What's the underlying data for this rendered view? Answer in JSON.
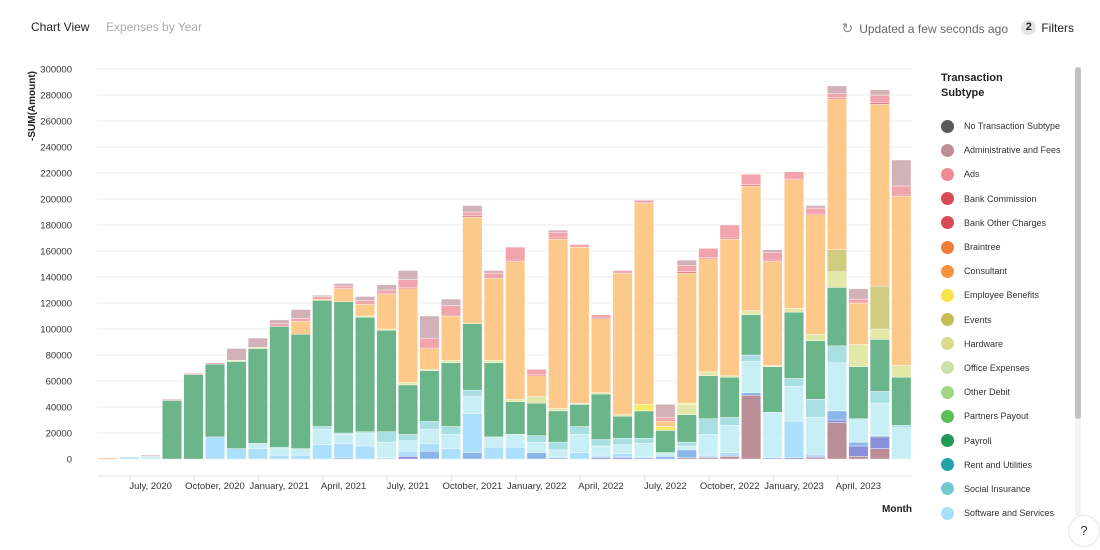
{
  "header": {
    "tab_chart_view": "Chart View",
    "tab_expenses_by_year": "Expenses by Year",
    "updated": "Updated a few seconds ago",
    "filters_count": "2",
    "filters_label": "Filters",
    "help": "?"
  },
  "legend": {
    "title_line1": "Transaction",
    "title_line2": "Subtype",
    "items": [
      {
        "label": "No Transaction Subtype",
        "color": "#5a5a5a"
      },
      {
        "label": "Administrative and Fees",
        "color": "#bf8f97"
      },
      {
        "label": "Ads",
        "color": "#ef8a96"
      },
      {
        "label": "Bank Commission",
        "color": "#d94a57"
      },
      {
        "label": "Bank Other Charges",
        "color": "#d84a58"
      },
      {
        "label": "Braintree",
        "color": "#f27d3a"
      },
      {
        "label": "Consultant",
        "color": "#f9923e"
      },
      {
        "label": "Employee Benefits",
        "color": "#f8e44c"
      },
      {
        "label": "Events",
        "color": "#c6bf56"
      },
      {
        "label": "Hardware",
        "color": "#dcd88c"
      },
      {
        "label": "Office Expenses",
        "color": "#c9e2a9"
      },
      {
        "label": "Other Debit",
        "color": "#a3d785"
      },
      {
        "label": "Partners Payout",
        "color": "#5cbf56"
      },
      {
        "label": "Payroll",
        "color": "#1f9a58"
      },
      {
        "label": "Rent and Utilities",
        "color": "#21a3a9"
      },
      {
        "label": "Social Insurance",
        "color": "#74c9cf"
      },
      {
        "label": "Software and Services",
        "color": "#a7e0f8"
      }
    ]
  },
  "chart_data": {
    "type": "bar",
    "stacked": true,
    "ylabel": "-SUM(Amount)",
    "xlabel": "Month",
    "ylim": [
      0,
      300000
    ],
    "yticks": [
      0,
      20000,
      40000,
      60000,
      80000,
      100000,
      120000,
      140000,
      160000,
      180000,
      200000,
      220000,
      240000,
      260000,
      280000,
      300000
    ],
    "grid": true,
    "legend_position": "right",
    "categories": [
      "May, 2020",
      "June, 2020",
      "July, 2020",
      "August, 2020",
      "September, 2020",
      "October, 2020",
      "November, 2020",
      "December, 2020",
      "January, 2021",
      "February, 2021",
      "March, 2021",
      "April, 2021",
      "May, 2021",
      "June, 2021",
      "July, 2021",
      "August, 2021",
      "September, 2021",
      "October, 2021",
      "November, 2021",
      "December, 2021",
      "January, 2022",
      "February, 2022",
      "March, 2022",
      "April, 2022",
      "May, 2022",
      "June, 2022",
      "July, 2022",
      "August, 2022",
      "September, 2022",
      "October, 2022",
      "November, 2022",
      "December, 2022",
      "January, 2023",
      "February, 2023",
      "March, 2023",
      "April, 2023",
      "May, 2023",
      "June, 2023"
    ],
    "xtick_labels": [
      "July, 2020",
      "October, 2020",
      "January, 2021",
      "April, 2021",
      "July, 2021",
      "October, 2021",
      "January, 2022",
      "April, 2022",
      "July, 2022",
      "October, 2022",
      "January, 2023",
      "April, 2023"
    ],
    "series": [
      {
        "name": "",
        "color": "#b98e97",
        "values": [
          0,
          0,
          0,
          0,
          0,
          0,
          0,
          0,
          0,
          0,
          0,
          0,
          0,
          0,
          0,
          0,
          0,
          0,
          0,
          0,
          0,
          0,
          0,
          0,
          0,
          0,
          0,
          1000,
          1000,
          2000,
          49000,
          0,
          0,
          1000,
          28000,
          2000,
          8000,
          0
        ]
      },
      {
        "name": "",
        "color": "#8a90d8",
        "values": [
          0,
          0,
          0,
          0,
          0,
          0,
          0,
          0,
          0,
          0,
          0,
          0,
          0,
          0,
          2000,
          0,
          0,
          0,
          0,
          0,
          0,
          0,
          0,
          1000,
          1000,
          0,
          0,
          0,
          0,
          0,
          0,
          0,
          1000,
          1000,
          2000,
          8000,
          9000,
          0
        ]
      },
      {
        "name": "",
        "color": "#8ab6ea",
        "values": [
          0,
          0,
          0,
          0,
          0,
          0,
          0,
          0,
          0,
          0,
          0,
          1000,
          0,
          0,
          0,
          6000,
          0,
          5000,
          0,
          0,
          5000,
          1000,
          0,
          1000,
          1000,
          1000,
          2000,
          6000,
          1000,
          1000,
          2000,
          1000,
          0,
          1000,
          7000,
          3000,
          1000,
          0
        ]
      },
      {
        "name": "Software and Services",
        "color": "#abdffa",
        "values": [
          0,
          1500,
          0,
          0,
          0,
          17000,
          8000,
          8000,
          3000,
          3000,
          11000,
          11000,
          10000,
          1000,
          4000,
          6000,
          8000,
          30000,
          9000,
          9000,
          0,
          1000,
          5000,
          1000,
          2000,
          1000,
          0,
          0,
          1000,
          2000,
          0,
          0,
          28000,
          0,
          0,
          0,
          0,
          0
        ]
      },
      {
        "name": "",
        "color": "#c8eff5",
        "values": [
          0,
          0,
          2000,
          0,
          0,
          0,
          0,
          4000,
          5000,
          5000,
          12000,
          7000,
          10000,
          12000,
          8000,
          11000,
          11000,
          13000,
          8000,
          10000,
          8000,
          5000,
          14000,
          7000,
          7000,
          10000,
          3000,
          3000,
          16000,
          21000,
          24000,
          35000,
          27000,
          29000,
          37000,
          18000,
          25000,
          24000
        ]
      },
      {
        "name": "Social Insurance",
        "color": "#a8dfe2",
        "values": [
          0,
          0,
          0,
          0,
          0,
          0,
          0,
          0,
          1000,
          0,
          2000,
          1000,
          1000,
          8000,
          5000,
          6000,
          6000,
          5000,
          0,
          0,
          5000,
          6000,
          6000,
          5000,
          5000,
          4000,
          0,
          3000,
          12000,
          6000,
          5000,
          0,
          6000,
          14000,
          13000,
          0,
          9000,
          2000
        ]
      },
      {
        "name": "Payroll",
        "color": "#6ab58a",
        "values": [
          0,
          0,
          0,
          45000,
          65000,
          56000,
          67000,
          73000,
          93000,
          88000,
          97000,
          101000,
          88000,
          78000,
          38000,
          39000,
          49000,
          51000,
          57000,
          25000,
          25000,
          24000,
          17000,
          35000,
          17000,
          21000,
          17000,
          21000,
          33000,
          31000,
          31000,
          35000,
          51000,
          45000,
          45000,
          40000,
          40000,
          37000
        ]
      },
      {
        "name": "Hardware",
        "color": "#e3e8a8",
        "values": [
          0,
          0,
          0,
          0,
          0,
          0,
          1000,
          1000,
          0,
          0,
          0,
          0,
          1000,
          1000,
          2000,
          1000,
          2000,
          0,
          2000,
          2000,
          5000,
          2000,
          1000,
          1000,
          1000,
          0,
          0,
          8000,
          3000,
          1000,
          3000,
          1000,
          3000,
          5000,
          12000,
          17000,
          8000,
          9000
        ]
      },
      {
        "name": "Employee Benefits",
        "color": "#f9ea6a",
        "values": [
          0,
          0,
          0,
          0,
          0,
          0,
          0,
          0,
          0,
          0,
          0,
          0,
          0,
          0,
          0,
          0,
          0,
          0,
          0,
          0,
          0,
          0,
          0,
          0,
          0,
          5000,
          3000,
          1000,
          0,
          0,
          0,
          0,
          0,
          0,
          0,
          0,
          0,
          0
        ]
      },
      {
        "name": "Events",
        "color": "#d0cc80",
        "values": [
          0,
          0,
          0,
          0,
          0,
          0,
          0,
          0,
          0,
          0,
          0,
          0,
          0,
          0,
          0,
          0,
          0,
          0,
          0,
          0,
          0,
          0,
          0,
          0,
          0,
          0,
          0,
          0,
          0,
          0,
          0,
          0,
          0,
          0,
          17000,
          0,
          33000,
          0
        ]
      },
      {
        "name": "Consultant",
        "color": "#fdc98a",
        "values": [
          1000,
          0,
          0,
          0,
          0,
          0,
          0,
          0,
          0,
          10000,
          1000,
          10000,
          9000,
          27000,
          72000,
          16000,
          34000,
          82000,
          63000,
          106000,
          16000,
          130000,
          120000,
          57000,
          109000,
          155000,
          4000,
          100000,
          87000,
          105000,
          96000,
          80000,
          99000,
          92000,
          116000,
          32000,
          140000,
          130000
        ]
      },
      {
        "name": "Bank Commission",
        "color": "#e8707a",
        "values": [
          0,
          0,
          0,
          0,
          0,
          0,
          0,
          0,
          0,
          0,
          0,
          0,
          0,
          0,
          1000,
          1000,
          0,
          1000,
          0,
          1000,
          1000,
          1000,
          0,
          1000,
          0,
          0,
          1000,
          1000,
          1000,
          1000,
          1000,
          1000,
          1000,
          1000,
          1000,
          0,
          1000,
          1000
        ]
      },
      {
        "name": "Ads",
        "color": "#f2a4ac",
        "values": [
          0,
          0,
          0,
          0,
          1000,
          1000,
          0,
          0,
          2000,
          2000,
          2000,
          2000,
          3000,
          3000,
          6000,
          7000,
          8000,
          3000,
          4000,
          10000,
          4000,
          4000,
          2000,
          2000,
          2000,
          2000,
          2000,
          5000,
          7000,
          10000,
          8000,
          6000,
          5000,
          4000,
          3000,
          3000,
          6000,
          7000
        ]
      },
      {
        "name": "Administrative and Fees",
        "color": "#d2b2b8",
        "values": [
          0,
          0,
          1000,
          1000,
          0,
          0,
          9000,
          7000,
          3000,
          7000,
          1000,
          2000,
          3000,
          4000,
          7000,
          17000,
          5000,
          5000,
          2000,
          0,
          0,
          2000,
          0,
          0,
          0,
          0,
          10000,
          4000,
          0,
          0,
          0,
          2000,
          0,
          2000,
          6000,
          8000,
          4000,
          20000
        ]
      }
    ]
  }
}
